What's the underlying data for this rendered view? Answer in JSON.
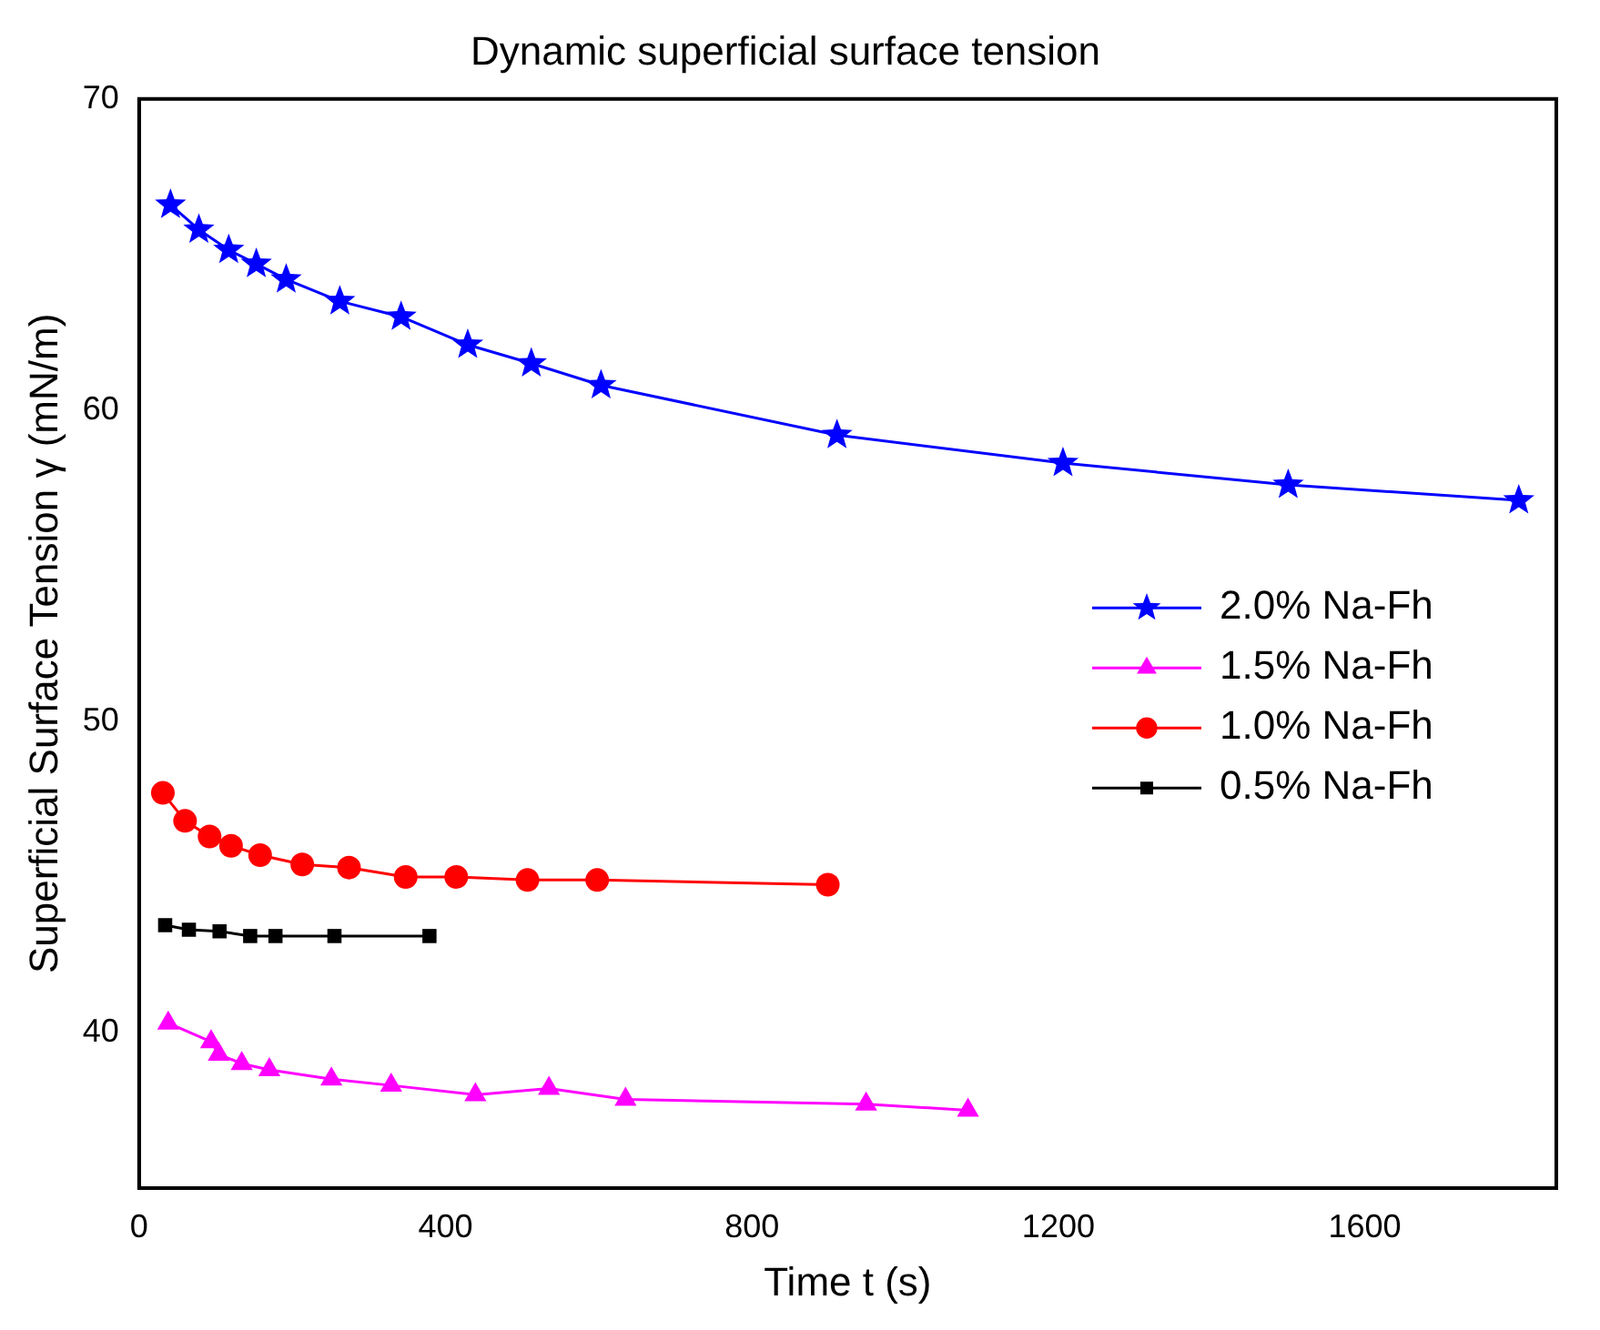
{
  "chart_data": {
    "type": "line",
    "title": "Dynamic superficial surface tension",
    "xlabel": "Time t (s)",
    "ylabel": "Superficial Surface Tension γ (mN/m)",
    "xlim": [
      0,
      1850
    ],
    "xticks": [
      0,
      400,
      800,
      1200,
      1600
    ],
    "ylim": [
      35,
      70
    ],
    "yticks": [
      40,
      50,
      60,
      70
    ],
    "grid": false,
    "legend": "right",
    "line_style": "solid",
    "series": [
      {
        "name": "2.0% Na-Fh",
        "color": "#0000ff",
        "marker": "star",
        "x": [
          41,
          78,
          117,
          153,
          192,
          262,
          342,
          429,
          512,
          603,
          911,
          1206,
          1500,
          1801
        ],
        "values": [
          66.6,
          65.8,
          65.15,
          64.7,
          64.2,
          63.5,
          63.0,
          62.1,
          61.5,
          60.8,
          59.2,
          58.3,
          57.6,
          57.1
        ]
      },
      {
        "name": "1.5% Na-Fh",
        "color": "#ff00ff",
        "marker": "triangle",
        "x": [
          38,
          94,
          104,
          134,
          170,
          251,
          329,
          439,
          535,
          635,
          949,
          1082
        ],
        "values": [
          40.3,
          39.7,
          39.3,
          39.0,
          38.8,
          38.5,
          38.3,
          38.0,
          38.2,
          37.85,
          37.7,
          37.5
        ]
      },
      {
        "name": "1.0% Na-Fh",
        "color": "#ff0000",
        "marker": "circle",
        "x": [
          31,
          60,
          92,
          120,
          158,
          213,
          274,
          348,
          414,
          507,
          598,
          899
        ],
        "values": [
          47.7,
          46.8,
          46.3,
          46.0,
          45.7,
          45.4,
          45.3,
          45.0,
          45.0,
          44.9,
          44.9,
          44.75
        ]
      },
      {
        "name": "0.5% Na-Fh",
        "color": "#000000",
        "marker": "square",
        "x": [
          34,
          65,
          105,
          145,
          178,
          255,
          379
        ],
        "values": [
          43.45,
          43.3,
          43.25,
          43.1,
          43.1,
          43.1,
          43.1
        ]
      }
    ]
  }
}
